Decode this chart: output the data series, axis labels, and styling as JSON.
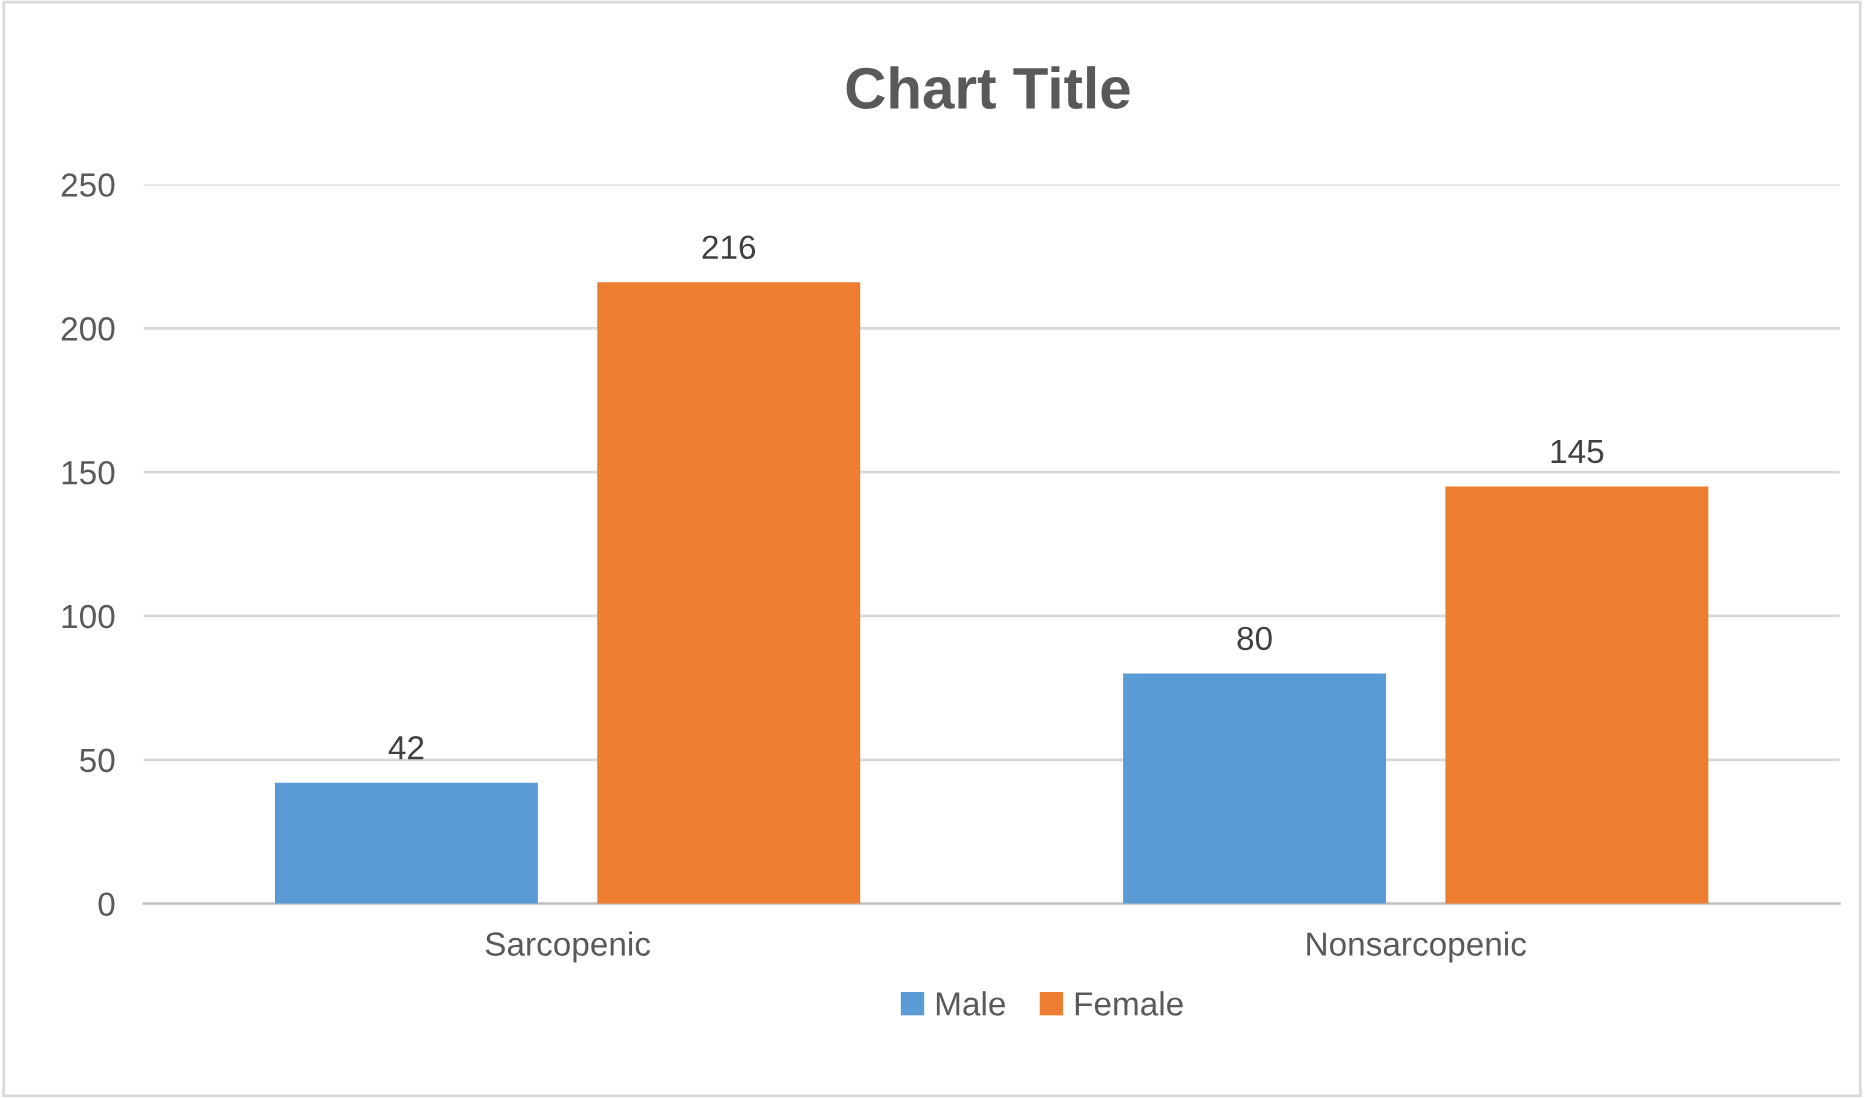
{
  "chart_data": {
    "type": "bar",
    "title": "Chart Title",
    "categories": [
      "Sarcopenic",
      "Nonsarcopenic"
    ],
    "series": [
      {
        "name": "Male",
        "color": "#5b9bd5",
        "values": [
          42,
          80
        ]
      },
      {
        "name": "Female",
        "color": "#ed7d31",
        "values": [
          216,
          145
        ]
      }
    ],
    "ylim": [
      0,
      250
    ],
    "yticks": [
      0,
      50,
      100,
      150,
      200,
      250
    ],
    "grid": "y",
    "legend": "bottom",
    "data_labels": true
  }
}
